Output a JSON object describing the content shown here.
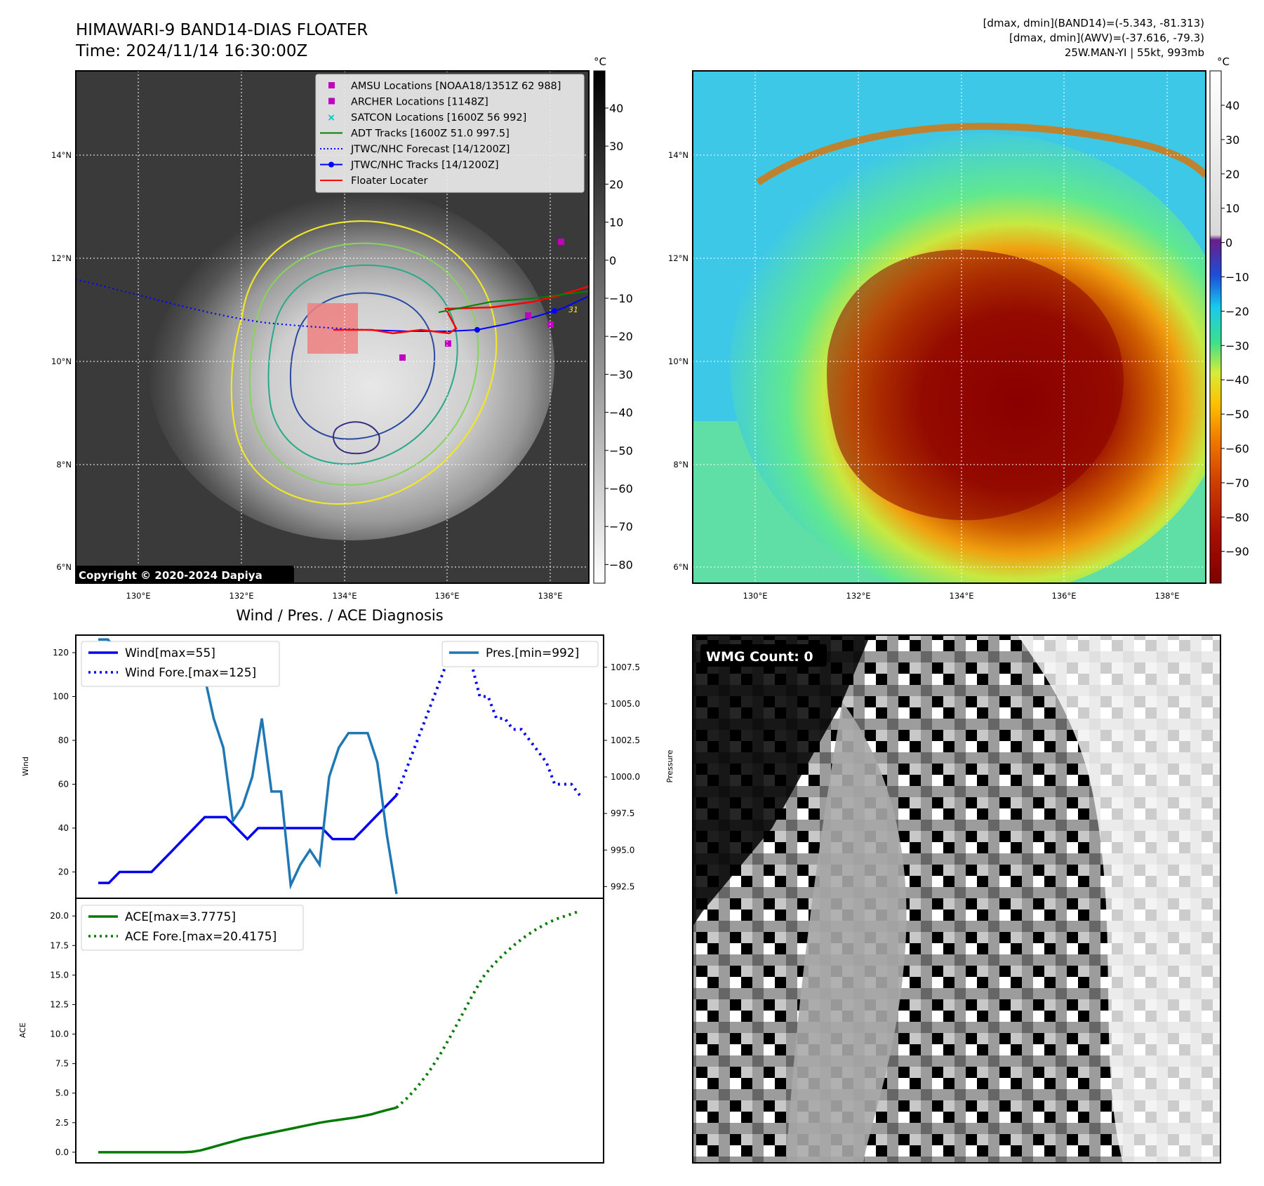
{
  "header": {
    "title_line1": "HIMAWARI-9 BAND14-DIAS FLOATER",
    "title_line2": "Time: 2024/11/14 16:30:00Z",
    "info_line1": "[dmax, dmin](BAND14)=(-5.343, -81.313)",
    "info_line2": "[dmax, dmin](AWV)=(-37.616, -79.3)",
    "info_line3": "25W.MAN-YI | 55kt, 993mb"
  },
  "map_left": {
    "copyright": "Copyright © 2020-2024 Dapiya",
    "colorbar_unit": "°C",
    "colorbar_ticks": [
      "40",
      "30",
      "20",
      "10",
      "0",
      "−10",
      "−20",
      "−30",
      "−40",
      "−50",
      "−60",
      "−70",
      "−80"
    ],
    "lon_labels": [
      "130°E",
      "132°E",
      "134°E",
      "136°E",
      "138°E"
    ],
    "lat_labels": [
      "14°N",
      "12°N",
      "10°N",
      "8°N",
      "6°N"
    ],
    "legend": [
      {
        "label": "AMSU Locations [NOAA18/1351Z 62 988]",
        "color": "#c000c0",
        "marker": "square"
      },
      {
        "label": "ARCHER Locations [1148Z]",
        "color": "#c000c0",
        "marker": "square"
      },
      {
        "label": "SATCON Locations [1600Z 56 992]",
        "color": "#00c0c0",
        "marker": "x"
      },
      {
        "label": "ADT Tracks [1600Z 51.0 997.5]",
        "color": "#008000",
        "marker": "line"
      },
      {
        "label": "JTWC/NHC Forecast [14/1200Z]",
        "color": "#0000ff",
        "marker": "dotted"
      },
      {
        "label": "JTWC/NHC Tracks [14/1200Z]",
        "color": "#0000ff",
        "marker": "line-dot"
      },
      {
        "label": "Floater Locater",
        "color": "#ff0000",
        "marker": "line"
      }
    ],
    "contour_label": "31"
  },
  "map_right": {
    "colorbar_unit": "°C",
    "colorbar_ticks": [
      "40",
      "30",
      "20",
      "10",
      "0",
      "−10",
      "−20",
      "−30",
      "−40",
      "−50",
      "−60",
      "−70",
      "−80",
      "−90"
    ],
    "lon_labels": [
      "130°E",
      "132°E",
      "134°E",
      "136°E",
      "138°E"
    ],
    "lat_labels": [
      "14°N",
      "12°N",
      "10°N",
      "8°N",
      "6°N"
    ]
  },
  "chart_data": [
    {
      "type": "line",
      "title": "Wind / Pres. / ACE Diagnosis",
      "ylabel": "Wind",
      "ylabel_right": "Pressure",
      "ylim": [
        8,
        128
      ],
      "ylim_right": [
        991.7,
        1009.7
      ],
      "yticks": [
        20,
        40,
        60,
        80,
        100,
        120
      ],
      "yticks_right": [
        "992.5",
        "995.0",
        "997.5",
        "1000.0",
        "1002.5",
        "1005.0",
        "1007.5"
      ],
      "legend_left": [
        "Wind[max=55]",
        "Wind Fore.[max=125]"
      ],
      "legend_right": [
        "Pres.[min=992]"
      ],
      "series": [
        {
          "name": "Wind[max=55]",
          "color": "#0000ee",
          "style": "solid",
          "values": [
            15,
            15,
            20,
            20,
            20,
            20,
            25,
            30,
            35,
            40,
            45,
            45,
            45,
            40,
            35,
            40,
            40,
            40,
            40,
            40,
            40,
            40,
            35,
            35,
            35,
            40,
            45,
            50,
            55
          ]
        },
        {
          "name": "Wind Fore.[max=125]",
          "color": "#0000ee",
          "style": "dotted",
          "values": [
            55,
            65,
            75,
            85,
            95,
            105,
            115,
            125,
            115,
            115,
            100,
            100,
            90,
            90,
            85,
            85,
            80,
            75,
            70,
            60,
            60,
            60,
            55
          ]
        },
        {
          "name": "Pres.[min=992]",
          "color": "#1f77b4",
          "style": "solid",
          "values": [
            1009.4,
            1009.4,
            1008.6,
            1008.6,
            1009.0,
            1009.0,
            1009.0,
            1009.0,
            1009.0,
            1009.0,
            1007.0,
            1007.0,
            1004.0,
            1002.0,
            997.0,
            998.0,
            1000.0,
            1004.0,
            999.0,
            999.0,
            992.6,
            994.0,
            995.0,
            994.0,
            1000.0,
            1002.0,
            1003.0,
            1003.0,
            1003.0,
            1001.0,
            996.0,
            992.0
          ]
        }
      ]
    },
    {
      "type": "line",
      "ylabel": "ACE",
      "ylim": [
        -0.9,
        21.5
      ],
      "yticks": [
        "0.0",
        "2.5",
        "5.0",
        "7.5",
        "10.0",
        "12.5",
        "15.0",
        "17.5",
        "20.0"
      ],
      "legend": [
        "ACE[max=3.7775]",
        "ACE Fore.[max=20.4175]"
      ],
      "series": [
        {
          "name": "ACE[max=3.7775]",
          "color": "#007a00",
          "style": "solid",
          "values": [
            0,
            0,
            0,
            0,
            0,
            0,
            0,
            0,
            0,
            0,
            0,
            0.04,
            0.15,
            0.35,
            0.55,
            0.75,
            0.95,
            1.15,
            1.3,
            1.45,
            1.6,
            1.75,
            1.9,
            2.05,
            2.2,
            2.35,
            2.5,
            2.62,
            2.72,
            2.82,
            2.92,
            3.05,
            3.2,
            3.4,
            3.6,
            3.7775
          ]
        },
        {
          "name": "ACE Fore.[max=20.4175]",
          "color": "#007a00",
          "style": "dotted",
          "values": [
            3.7775,
            4.6,
            5.6,
            6.8,
            8.2,
            9.8,
            11.5,
            13.2,
            14.8,
            15.9,
            16.8,
            17.6,
            18.3,
            18.9,
            19.4,
            19.8,
            20.1,
            20.4175
          ]
        }
      ]
    }
  ],
  "wmg": {
    "label": "WMG Count: 0"
  }
}
